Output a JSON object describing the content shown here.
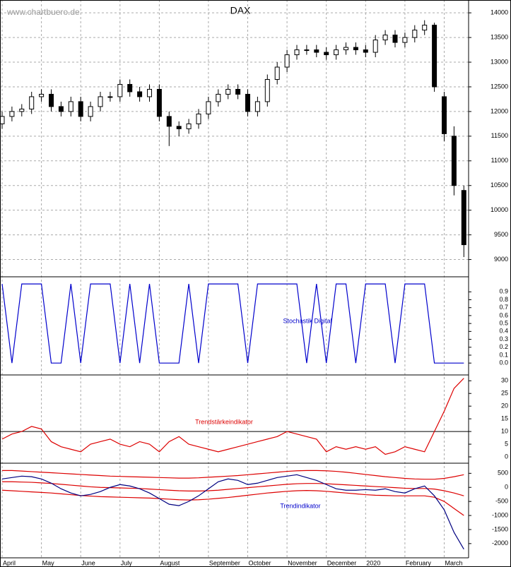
{
  "source": "www.chartbuero.de",
  "chart_data": [
    {
      "type": "candlestick",
      "title": "DAX",
      "color": "#000000",
      "grid": true,
      "open": [
        11750,
        11900,
        12000,
        12050,
        12300,
        12350,
        12100,
        12000,
        12200,
        11900,
        12100,
        12300,
        12300,
        12550,
        12400,
        12300,
        12450,
        11900,
        11700,
        11650,
        11750,
        11950,
        12200,
        12350,
        12450,
        12350,
        12000,
        12200,
        12650,
        12900,
        13150,
        13250,
        13250,
        13200,
        13150,
        13250,
        13300,
        13250,
        13200,
        13450,
        13550,
        13400,
        13500,
        13650,
        13750,
        12300,
        11500,
        10400
      ],
      "high": [
        12000,
        12100,
        12150,
        12400,
        12450,
        12450,
        12200,
        12300,
        12300,
        12200,
        12400,
        12400,
        12650,
        12650,
        12500,
        12550,
        12550,
        12000,
        11800,
        11850,
        12050,
        12300,
        12450,
        12550,
        12550,
        12450,
        12300,
        12750,
        13000,
        13250,
        13350,
        13350,
        13350,
        13300,
        13350,
        13400,
        13400,
        13350,
        13550,
        13650,
        13650,
        13600,
        13750,
        13850,
        13800,
        12400,
        11700,
        10500
      ],
      "low": [
        11650,
        11800,
        11900,
        11950,
        12200,
        12000,
        11900,
        11900,
        11800,
        11800,
        12000,
        12200,
        12200,
        12300,
        12200,
        12200,
        11800,
        11300,
        11500,
        11550,
        11650,
        11850,
        12100,
        12250,
        12250,
        11900,
        11900,
        12100,
        12550,
        12800,
        13050,
        13150,
        13100,
        13050,
        13050,
        13150,
        13150,
        13100,
        13100,
        13350,
        13300,
        13300,
        13400,
        13550,
        12400,
        11400,
        10300,
        9050
      ],
      "close": [
        11900,
        12000,
        12050,
        12300,
        12350,
        12100,
        12000,
        12200,
        11900,
        12100,
        12300,
        12300,
        12550,
        12400,
        12300,
        12450,
        11900,
        11700,
        11650,
        11750,
        11950,
        12200,
        12350,
        12450,
        12350,
        12000,
        12200,
        12650,
        12900,
        13150,
        13250,
        13250,
        13200,
        13150,
        13250,
        13300,
        13250,
        13200,
        13450,
        13550,
        13400,
        13500,
        13650,
        13750,
        12500,
        11550,
        10500,
        9300
      ],
      "ylim": [
        8650,
        14260
      ],
      "yticks": [
        9000,
        9500,
        10000,
        10500,
        11000,
        11500,
        12000,
        12500,
        13000,
        13500,
        14000
      ]
    },
    {
      "type": "line",
      "title": "Stochastik Digital",
      "color": "#0000cc",
      "values": [
        1,
        0,
        1,
        1,
        1,
        0,
        0,
        1,
        0,
        1,
        1,
        1,
        0,
        1,
        0,
        1,
        0,
        0,
        0,
        1,
        0,
        1,
        1,
        1,
        1,
        0,
        1,
        1,
        1,
        1,
        1,
        0,
        1,
        0,
        1,
        1,
        0,
        1,
        1,
        1,
        0,
        1,
        1,
        1,
        0,
        0,
        0,
        0
      ],
      "ylim": [
        -0.15,
        1.09
      ],
      "yticks": [
        {
          "value": 0,
          "label": "0.0"
        },
        0.1,
        0.2,
        0.3,
        0.4,
        0.5,
        0.6,
        0.7,
        0.8,
        0.9
      ]
    },
    {
      "type": "line",
      "title": "Trendstärkeindikator",
      "color": "#dd0000",
      "hline": 10,
      "values": [
        7,
        9,
        10,
        12,
        11,
        6,
        4,
        3,
        2,
        5,
        6,
        7,
        5,
        4,
        6,
        5,
        2,
        6,
        8,
        5,
        4,
        3,
        2,
        3,
        4,
        5,
        6,
        7,
        8,
        10,
        9,
        8,
        7,
        2,
        4,
        3,
        4,
        3,
        4,
        1,
        2,
        4,
        3,
        2,
        10,
        18,
        27,
        31
      ],
      "ylim": [
        -2.5,
        32.3
      ],
      "yticks": [
        0,
        5,
        10,
        15,
        20,
        25,
        30
      ]
    },
    {
      "type": "line",
      "title": "Trendindikator",
      "title_color": "#0000cc",
      "categories": [
        "April",
        null,
        null,
        null,
        "May",
        null,
        null,
        null,
        "June",
        null,
        null,
        null,
        "July",
        null,
        null,
        null,
        "August",
        null,
        null,
        null,
        null,
        "September",
        null,
        null,
        null,
        "October",
        null,
        null,
        null,
        "November",
        null,
        null,
        null,
        "December",
        null,
        null,
        null,
        "2020",
        null,
        null,
        null,
        "February",
        null,
        null,
        null,
        "March",
        null,
        null
      ],
      "series": [
        {
          "color": "#dd0000",
          "values": [
            600,
            600,
            580,
            560,
            540,
            520,
            500,
            480,
            460,
            440,
            420,
            400,
            390,
            380,
            370,
            360,
            350,
            340,
            330,
            330,
            340,
            360,
            380,
            400,
            420,
            450,
            480,
            510,
            540,
            570,
            590,
            600,
            600,
            590,
            570,
            540,
            500,
            460,
            420,
            380,
            350,
            320,
            300,
            290,
            290,
            320,
            380,
            450
          ]
        },
        {
          "color": "#dd0000",
          "values": [
            200,
            200,
            190,
            180,
            160,
            140,
            110,
            80,
            50,
            20,
            0,
            -10,
            -20,
            -30,
            -40,
            -60,
            -80,
            -100,
            -120,
            -130,
            -130,
            -120,
            -100,
            -70,
            -40,
            -10,
            20,
            50,
            80,
            110,
            130,
            140,
            140,
            130,
            110,
            90,
            70,
            50,
            30,
            10,
            -10,
            -30,
            -40,
            -40,
            -60,
            -120,
            -200,
            -300
          ]
        },
        {
          "color": "#dd0000",
          "values": [
            -100,
            -120,
            -140,
            -160,
            -180,
            -200,
            -230,
            -260,
            -290,
            -310,
            -330,
            -340,
            -350,
            -360,
            -370,
            -380,
            -400,
            -420,
            -440,
            -450,
            -440,
            -420,
            -390,
            -360,
            -320,
            -280,
            -240,
            -200,
            -170,
            -140,
            -120,
            -110,
            -120,
            -140,
            -170,
            -200,
            -230,
            -260,
            -280,
            -290,
            -300,
            -300,
            -300,
            -300,
            -350,
            -500,
            -750,
            -1000
          ]
        },
        {
          "color": "#000080",
          "values": [
            300,
            350,
            400,
            380,
            300,
            150,
            -50,
            -200,
            -300,
            -250,
            -150,
            0,
            100,
            50,
            -50,
            -200,
            -400,
            -600,
            -650,
            -500,
            -300,
            -50,
            200,
            300,
            250,
            100,
            150,
            250,
            350,
            400,
            450,
            350,
            250,
            100,
            -50,
            -100,
            -100,
            -80,
            -100,
            -50,
            -150,
            -200,
            -50,
            50,
            -300,
            -800,
            -1600,
            -2200
          ]
        }
      ],
      "ylim": [
        -2506,
        860
      ],
      "yticks": [
        -2000,
        -1500,
        -1000,
        -500,
        0,
        500
      ]
    }
  ]
}
